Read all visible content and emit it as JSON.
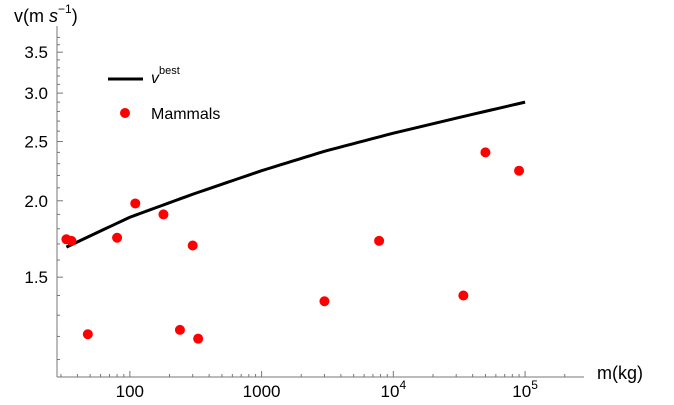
{
  "chart_data": {
    "type": "scatter",
    "x_scale": "log",
    "y_scale": "log",
    "xlabel": "m(kg)",
    "ylabel": "v(m s^{-1})",
    "ylabel_parts": {
      "base": "v(m ",
      "s": "s",
      "sup": "−1",
      "close": ")"
    },
    "xlim": [
      28,
      280000
    ],
    "ylim": [
      1.03,
      3.72
    ],
    "x_ticks": [
      {
        "value": 100,
        "label": "100"
      },
      {
        "value": 1000,
        "label": "1000"
      },
      {
        "value": 10000,
        "label_base": "10",
        "label_exp": "4"
      },
      {
        "value": 100000,
        "label_base": "10",
        "label_exp": "5"
      }
    ],
    "y_ticks": [
      {
        "value": 1.5,
        "label": "1.5"
      },
      {
        "value": 2.0,
        "label": "2.0"
      },
      {
        "value": 2.5,
        "label": "2.5"
      },
      {
        "value": 3.0,
        "label": "3.0"
      },
      {
        "value": 3.5,
        "label": "3.5"
      }
    ],
    "grid": false,
    "legend_position": "top-left",
    "series": [
      {
        "name": "v^{best}",
        "legend_base": "v",
        "legend_sup": "best",
        "kind": "line",
        "color": "#000000",
        "x": [
          33,
          100,
          300,
          1000,
          3000,
          10000,
          30000,
          100000
        ],
        "y": [
          1.68,
          1.88,
          2.05,
          2.24,
          2.41,
          2.58,
          2.73,
          2.9
        ]
      },
      {
        "name": "Mammals",
        "kind": "scatter",
        "color": "#ff0000",
        "x": [
          33,
          36,
          48,
          80,
          110,
          180,
          240,
          300,
          330,
          3000,
          7800,
          34000,
          50000,
          90000
        ],
        "y": [
          1.73,
          1.72,
          1.21,
          1.74,
          1.98,
          1.9,
          1.23,
          1.69,
          1.19,
          1.37,
          1.72,
          1.4,
          2.4,
          2.24
        ]
      }
    ]
  }
}
